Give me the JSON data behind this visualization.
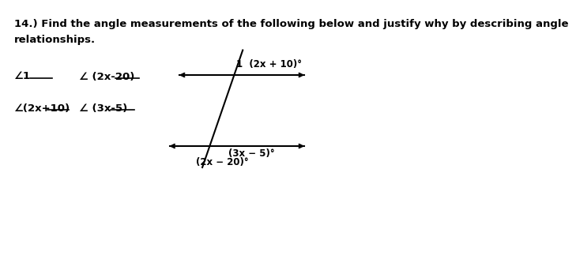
{
  "title_line1": "14.) Find the angle measurements of the following below and justify why by describing angle",
  "title_line2": "relationships.",
  "label_angle1": "∠1",
  "label_angle2x20": "∠ (2x-20)",
  "label_angle2x10": "∠(2x+10)",
  "label_angle3x5": "∠ (3x-5)",
  "diagram_label_upper": "1  (2x + 10)°",
  "diagram_label_lower_right": "(3x − 5)°",
  "diagram_label_lower_left": "(2x − 20)°",
  "bg_color": "#ffffff",
  "text_color": "#000000",
  "line_color": "#000000",
  "font_size_title": 9.5,
  "font_size_labels": 9.5,
  "font_size_diagram": 8.5
}
